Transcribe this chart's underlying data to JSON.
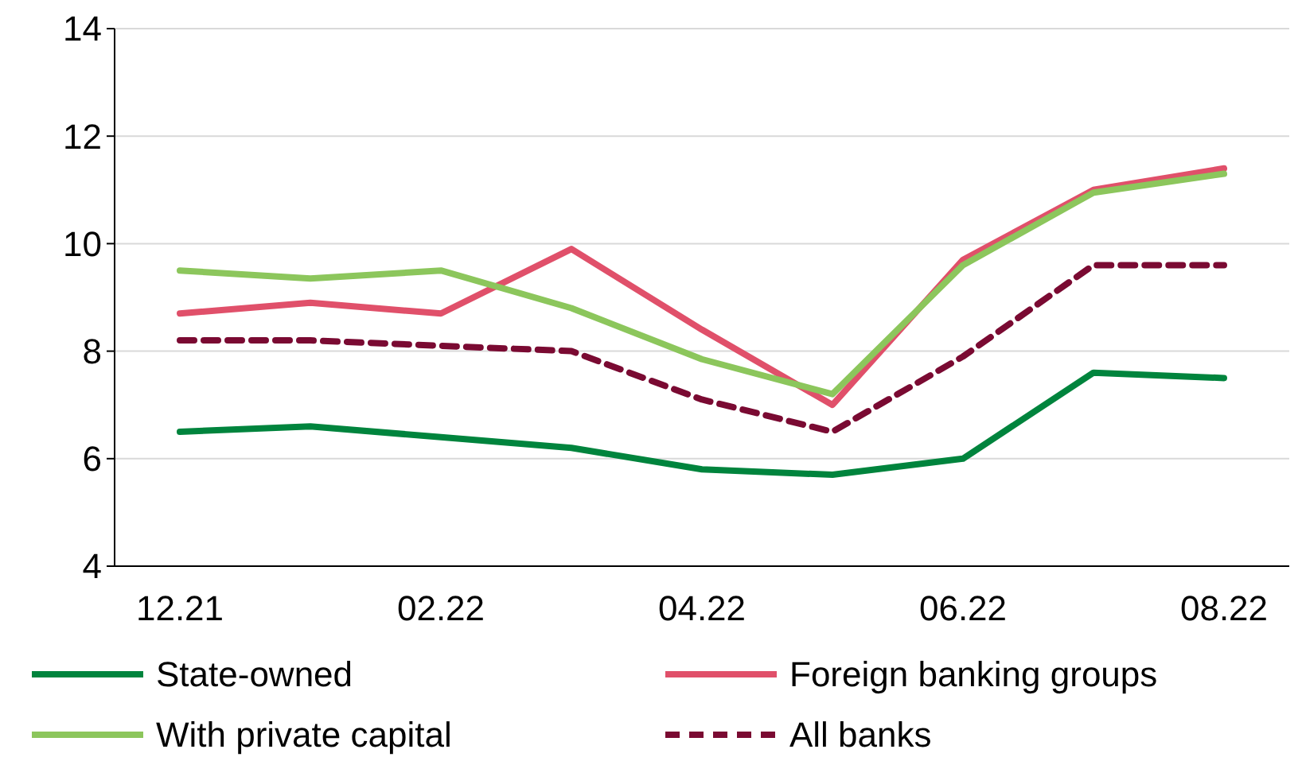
{
  "chart_data": {
    "type": "line",
    "categories": [
      "12.21",
      null,
      "02.22",
      null,
      "04.22",
      null,
      "06.22",
      null,
      "08.22"
    ],
    "series": [
      {
        "name": "State-owned",
        "color": "#00843d",
        "values": [
          6.5,
          6.6,
          6.4,
          6.2,
          5.8,
          5.7,
          6.0,
          7.6,
          7.5
        ]
      },
      {
        "name": "Foreign banking groups",
        "color": "#e0506a",
        "values": [
          8.7,
          8.9,
          8.7,
          9.9,
          8.4,
          7.0,
          9.7,
          11.0,
          11.4
        ]
      },
      {
        "name": "With private capital",
        "color": "#8cc65c",
        "values": [
          9.5,
          9.35,
          9.5,
          8.8,
          7.85,
          7.2,
          9.6,
          10.95,
          11.3
        ]
      },
      {
        "name": "All banks",
        "color": "#7a0a32",
        "values": [
          8.2,
          8.2,
          8.1,
          8.0,
          7.1,
          6.5,
          7.9,
          9.6,
          9.6
        ],
        "line_style": "dashed"
      }
    ],
    "ylim": [
      4,
      14
    ],
    "yticks": [
      4,
      6,
      8,
      10,
      12,
      14
    ],
    "grid": "y",
    "legend": "bottom",
    "marker": "none",
    "line_style": "solid"
  }
}
